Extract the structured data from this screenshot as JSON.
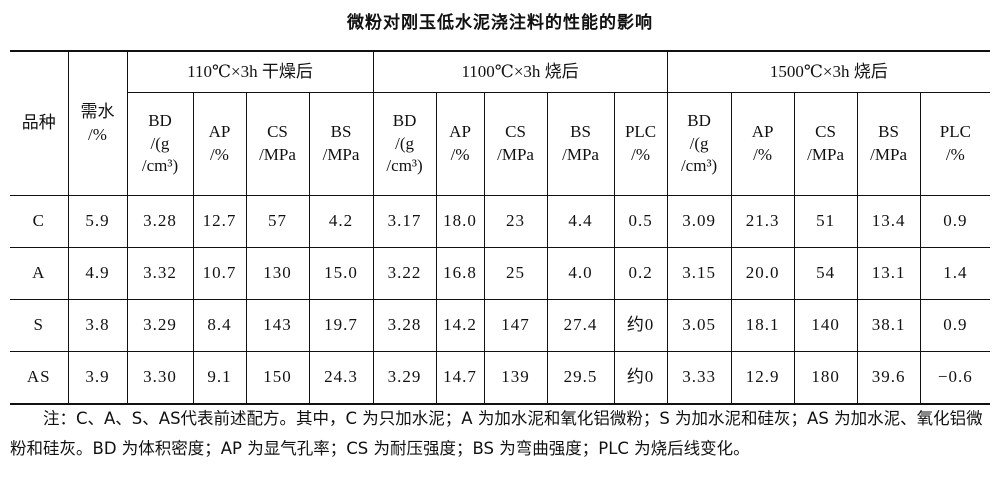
{
  "title": "微粉对刚玉低水泥浇注料的性能的影响",
  "table": {
    "row_header": "品种",
    "water_header": "需水\n/%",
    "groups": [
      "110℃×3h 干燥后",
      "1100℃×3h 烧后",
      "1500℃×3h 烧后"
    ],
    "group_columns": [
      [
        "BD\n/(g\n/cm³)",
        "AP\n/%",
        "CS\n/MPa",
        "BS\n/MPa"
      ],
      [
        "BD\n/(g\n/cm³)",
        "AP\n/%",
        "CS\n/MPa",
        "BS\n/MPa",
        "PLC\n/%"
      ],
      [
        "BD\n/(g\n/cm³)",
        "AP\n/%",
        "CS\n/MPa",
        "BS\n/MPa",
        "PLC\n/%"
      ]
    ],
    "rows": [
      [
        "C",
        "5.9",
        "3.28",
        "12.7",
        "57",
        "4.2",
        "3.17",
        "18.0",
        "23",
        "4.4",
        "0.5",
        "3.09",
        "21.3",
        "51",
        "13.4",
        "0.9"
      ],
      [
        "A",
        "4.9",
        "3.32",
        "10.7",
        "130",
        "15.0",
        "3.22",
        "16.8",
        "25",
        "4.0",
        "0.2",
        "3.15",
        "20.0",
        "54",
        "13.1",
        "1.4"
      ],
      [
        "S",
        "3.8",
        "3.29",
        "8.4",
        "143",
        "19.7",
        "3.28",
        "14.2",
        "147",
        "27.4",
        "约0",
        "3.05",
        "18.1",
        "140",
        "38.1",
        "0.9"
      ],
      [
        "AS",
        "3.9",
        "3.30",
        "9.1",
        "150",
        "24.3",
        "3.29",
        "14.7",
        "139",
        "29.5",
        "约0",
        "3.33",
        "12.9",
        "180",
        "39.6",
        "−0.6"
      ]
    ]
  },
  "note": "注：C、A、S、AS代表前述配方。其中，C 为只加水泥；A 为加水泥和氧化铝微粉；S 为加水泥和硅灰；AS 为加水泥、氧化铝微粉和硅灰。BD 为体积密度；AP 为显气孔率；CS 为耐压强度；BS 为弯曲强度；PLC 为烧后线变化。"
}
